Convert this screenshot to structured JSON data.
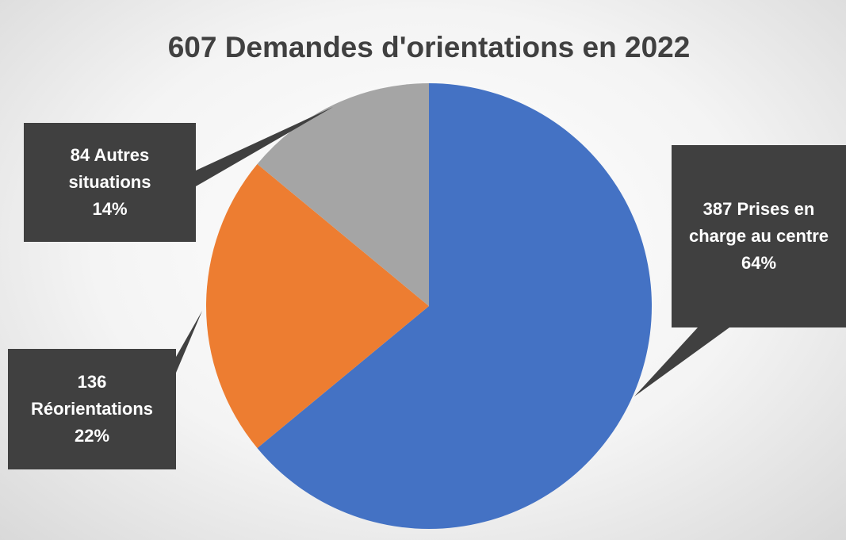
{
  "chart_data": {
    "type": "pie",
    "title": "607 Demandes d'orientations en 2022",
    "categories": [
      "Prises en charge au centre",
      "Réorientations",
      "Autres situations"
    ],
    "counts": [
      387,
      136,
      84
    ],
    "values": [
      64,
      22,
      14
    ],
    "value_labels": [
      "64%",
      "22%",
      "14%"
    ],
    "colors": [
      "#4472c4",
      "#ed7d31",
      "#a5a5a5"
    ]
  }
}
